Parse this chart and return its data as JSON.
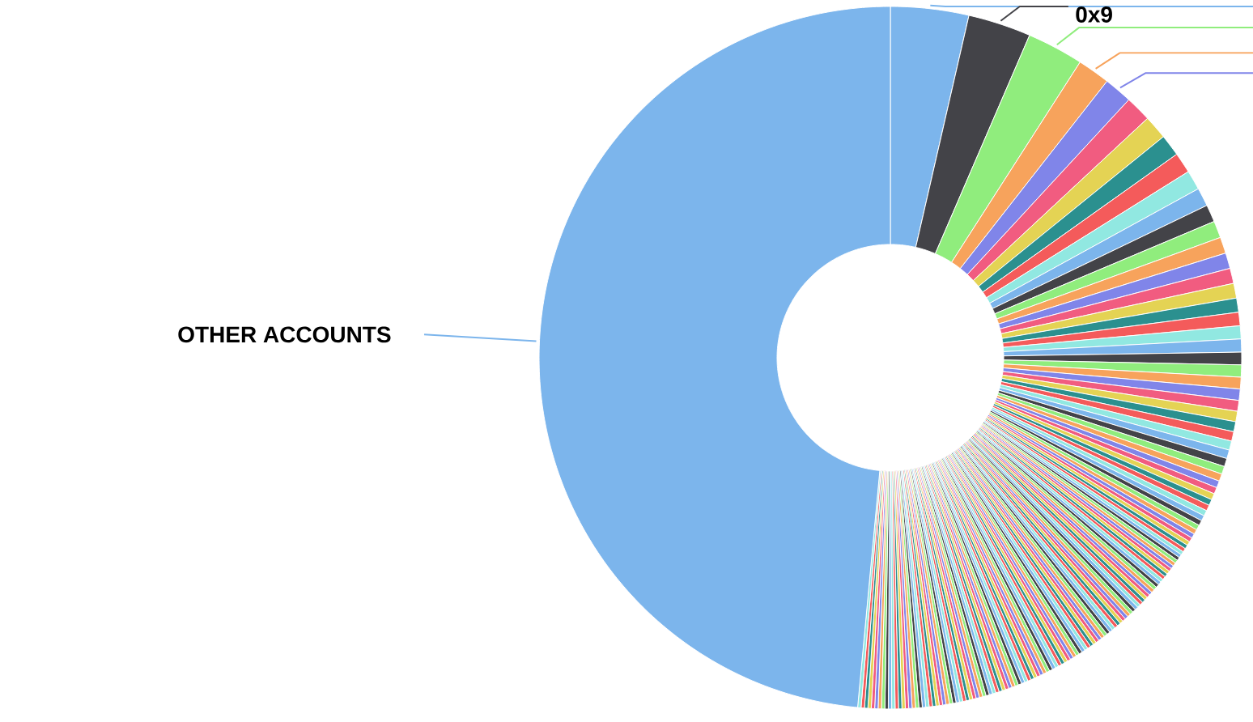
{
  "chart_data": {
    "type": "donut",
    "categories": [
      null,
      "0x9",
      null,
      null,
      null,
      null,
      null,
      null,
      null,
      null,
      null,
      null,
      null,
      null,
      null,
      null,
      null,
      null,
      null,
      null,
      null,
      null,
      null,
      null,
      null,
      null,
      null,
      null,
      null,
      null,
      null,
      null,
      null,
      null,
      null,
      null,
      null,
      null,
      null,
      null,
      null,
      null,
      null,
      null,
      null,
      null,
      null,
      null,
      null,
      null,
      null,
      null,
      null,
      null,
      null,
      null,
      null,
      null,
      null,
      null,
      null,
      null,
      null,
      null,
      null,
      null,
      null,
      null,
      null,
      null,
      null,
      null,
      null,
      null,
      null,
      null,
      null,
      null,
      null,
      null,
      null,
      null,
      null,
      null,
      null,
      null,
      null,
      null,
      null,
      null,
      null,
      null,
      null,
      null,
      null,
      null,
      null,
      null,
      null,
      null,
      null,
      null,
      null,
      null,
      null,
      null,
      null,
      null,
      null,
      null,
      null,
      null,
      null,
      null,
      null,
      null,
      null,
      null,
      null,
      null,
      null,
      null,
      null,
      null,
      null,
      null,
      null,
      null,
      null,
      null,
      null,
      null,
      null,
      null,
      null,
      null,
      null,
      null,
      null,
      null,
      null,
      null,
      null,
      null,
      null,
      null,
      null,
      null,
      null,
      null,
      null,
      null,
      null,
      null,
      null,
      null,
      null,
      null,
      null,
      null,
      "OTHER ACCOUNTS"
    ],
    "values": [
      3.6,
      2.9,
      2.6,
      1.5,
      1.3,
      1.2,
      1.1,
      1.0,
      0.95,
      0.9,
      0.85,
      0.8,
      0.78,
      0.75,
      0.72,
      0.7,
      0.68,
      0.65,
      0.62,
      0.6,
      0.6,
      0.58,
      0.56,
      0.54,
      0.52,
      0.5,
      0.48,
      0.46,
      0.44,
      0.42,
      0.4,
      0.38,
      0.36,
      0.34,
      0.32,
      0.3,
      0.29,
      0.28,
      0.27,
      0.26,
      0.25,
      0.24,
      0.23,
      0.22,
      0.21,
      0.2,
      0.19,
      0.18,
      0.17,
      0.16,
      0.155,
      0.155,
      0.155,
      0.155,
      0.155,
      0.155,
      0.155,
      0.155,
      0.155,
      0.155,
      0.155,
      0.155,
      0.155,
      0.155,
      0.155,
      0.155,
      0.155,
      0.155,
      0.155,
      0.155,
      0.155,
      0.155,
      0.155,
      0.155,
      0.155,
      0.155,
      0.155,
      0.155,
      0.155,
      0.155,
      0.155,
      0.155,
      0.155,
      0.155,
      0.155,
      0.155,
      0.155,
      0.155,
      0.155,
      0.155,
      0.155,
      0.155,
      0.155,
      0.155,
      0.155,
      0.155,
      0.155,
      0.155,
      0.155,
      0.155,
      0.155,
      0.155,
      0.155,
      0.155,
      0.155,
      0.155,
      0.155,
      0.155,
      0.155,
      0.155,
      0.155,
      0.155,
      0.155,
      0.155,
      0.155,
      0.155,
      0.155,
      0.155,
      0.155,
      0.155,
      0.155,
      0.155,
      0.155,
      0.155,
      0.155,
      0.155,
      0.155,
      0.155,
      0.155,
      0.155,
      0.155,
      0.155,
      0.155,
      0.155,
      0.155,
      0.155,
      0.155,
      0.155,
      0.155,
      0.155,
      0.155,
      0.155,
      0.155,
      0.155,
      0.155,
      0.155,
      0.155,
      0.155,
      0.155,
      0.155,
      0.155,
      0.155,
      0.155,
      0.155,
      0.155,
      0.155,
      0.155,
      0.155,
      0.155,
      0.155,
      48.62
    ],
    "colors": [
      "#7cb5ec",
      "#434348",
      "#90ed7d",
      "#f7a35c",
      "#8085e9",
      "#f15c80",
      "#e4d354",
      "#2b908f",
      "#f45b5b",
      "#91e8e1",
      "#7cb5ec",
      "#434348",
      "#90ed7d",
      "#f7a35c",
      "#8085e9",
      "#f15c80",
      "#e4d354",
      "#2b908f",
      "#f45b5b",
      "#91e8e1",
      "#7cb5ec",
      "#434348",
      "#90ed7d",
      "#f7a35c",
      "#8085e9",
      "#f15c80",
      "#e4d354",
      "#2b908f",
      "#f45b5b",
      "#91e8e1",
      "#7cb5ec",
      "#434348",
      "#90ed7d",
      "#f7a35c",
      "#8085e9",
      "#f15c80",
      "#e4d354",
      "#2b908f",
      "#f45b5b",
      "#91e8e1",
      "#7cb5ec",
      "#434348",
      "#90ed7d",
      "#f7a35c",
      "#8085e9",
      "#f15c80",
      "#e4d354",
      "#2b908f",
      "#f45b5b",
      "#91e8e1",
      "#7cb5ec",
      "#434348",
      "#90ed7d",
      "#f7a35c",
      "#8085e9",
      "#f15c80",
      "#e4d354",
      "#2b908f",
      "#f45b5b",
      "#91e8e1",
      "#7cb5ec",
      "#434348",
      "#90ed7d",
      "#f7a35c",
      "#8085e9",
      "#f15c80",
      "#e4d354",
      "#2b908f",
      "#f45b5b",
      "#91e8e1",
      "#7cb5ec",
      "#434348",
      "#90ed7d",
      "#f7a35c",
      "#8085e9",
      "#f15c80",
      "#e4d354",
      "#2b908f",
      "#f45b5b",
      "#91e8e1",
      "#7cb5ec",
      "#434348",
      "#90ed7d",
      "#f7a35c",
      "#8085e9",
      "#f15c80",
      "#e4d354",
      "#2b908f",
      "#f45b5b",
      "#91e8e1",
      "#7cb5ec",
      "#434348",
      "#90ed7d",
      "#f7a35c",
      "#8085e9",
      "#f15c80",
      "#e4d354",
      "#2b908f",
      "#f45b5b",
      "#91e8e1",
      "#7cb5ec",
      "#434348",
      "#90ed7d",
      "#f7a35c",
      "#8085e9",
      "#f15c80",
      "#e4d354",
      "#2b908f",
      "#f45b5b",
      "#91e8e1",
      "#7cb5ec",
      "#434348",
      "#90ed7d",
      "#f7a35c",
      "#8085e9",
      "#f15c80",
      "#e4d354",
      "#2b908f",
      "#f45b5b",
      "#91e8e1",
      "#7cb5ec",
      "#434348",
      "#90ed7d",
      "#f7a35c",
      "#8085e9",
      "#f15c80",
      "#e4d354",
      "#2b908f",
      "#f45b5b",
      "#91e8e1",
      "#7cb5ec",
      "#434348",
      "#90ed7d",
      "#f7a35c",
      "#8085e9",
      "#f15c80",
      "#e4d354",
      "#2b908f",
      "#f45b5b",
      "#91e8e1",
      "#7cb5ec",
      "#434348",
      "#90ed7d",
      "#f7a35c",
      "#8085e9",
      "#f15c80",
      "#e4d354",
      "#2b908f",
      "#f45b5b",
      "#91e8e1",
      "#7cb5ec",
      "#434348",
      "#90ed7d",
      "#f7a35c",
      "#8085e9",
      "#f15c80",
      "#e4d354",
      "#2b908f",
      "#f45b5b",
      "#91e8e1",
      "#7cb5ec"
    ]
  }
}
